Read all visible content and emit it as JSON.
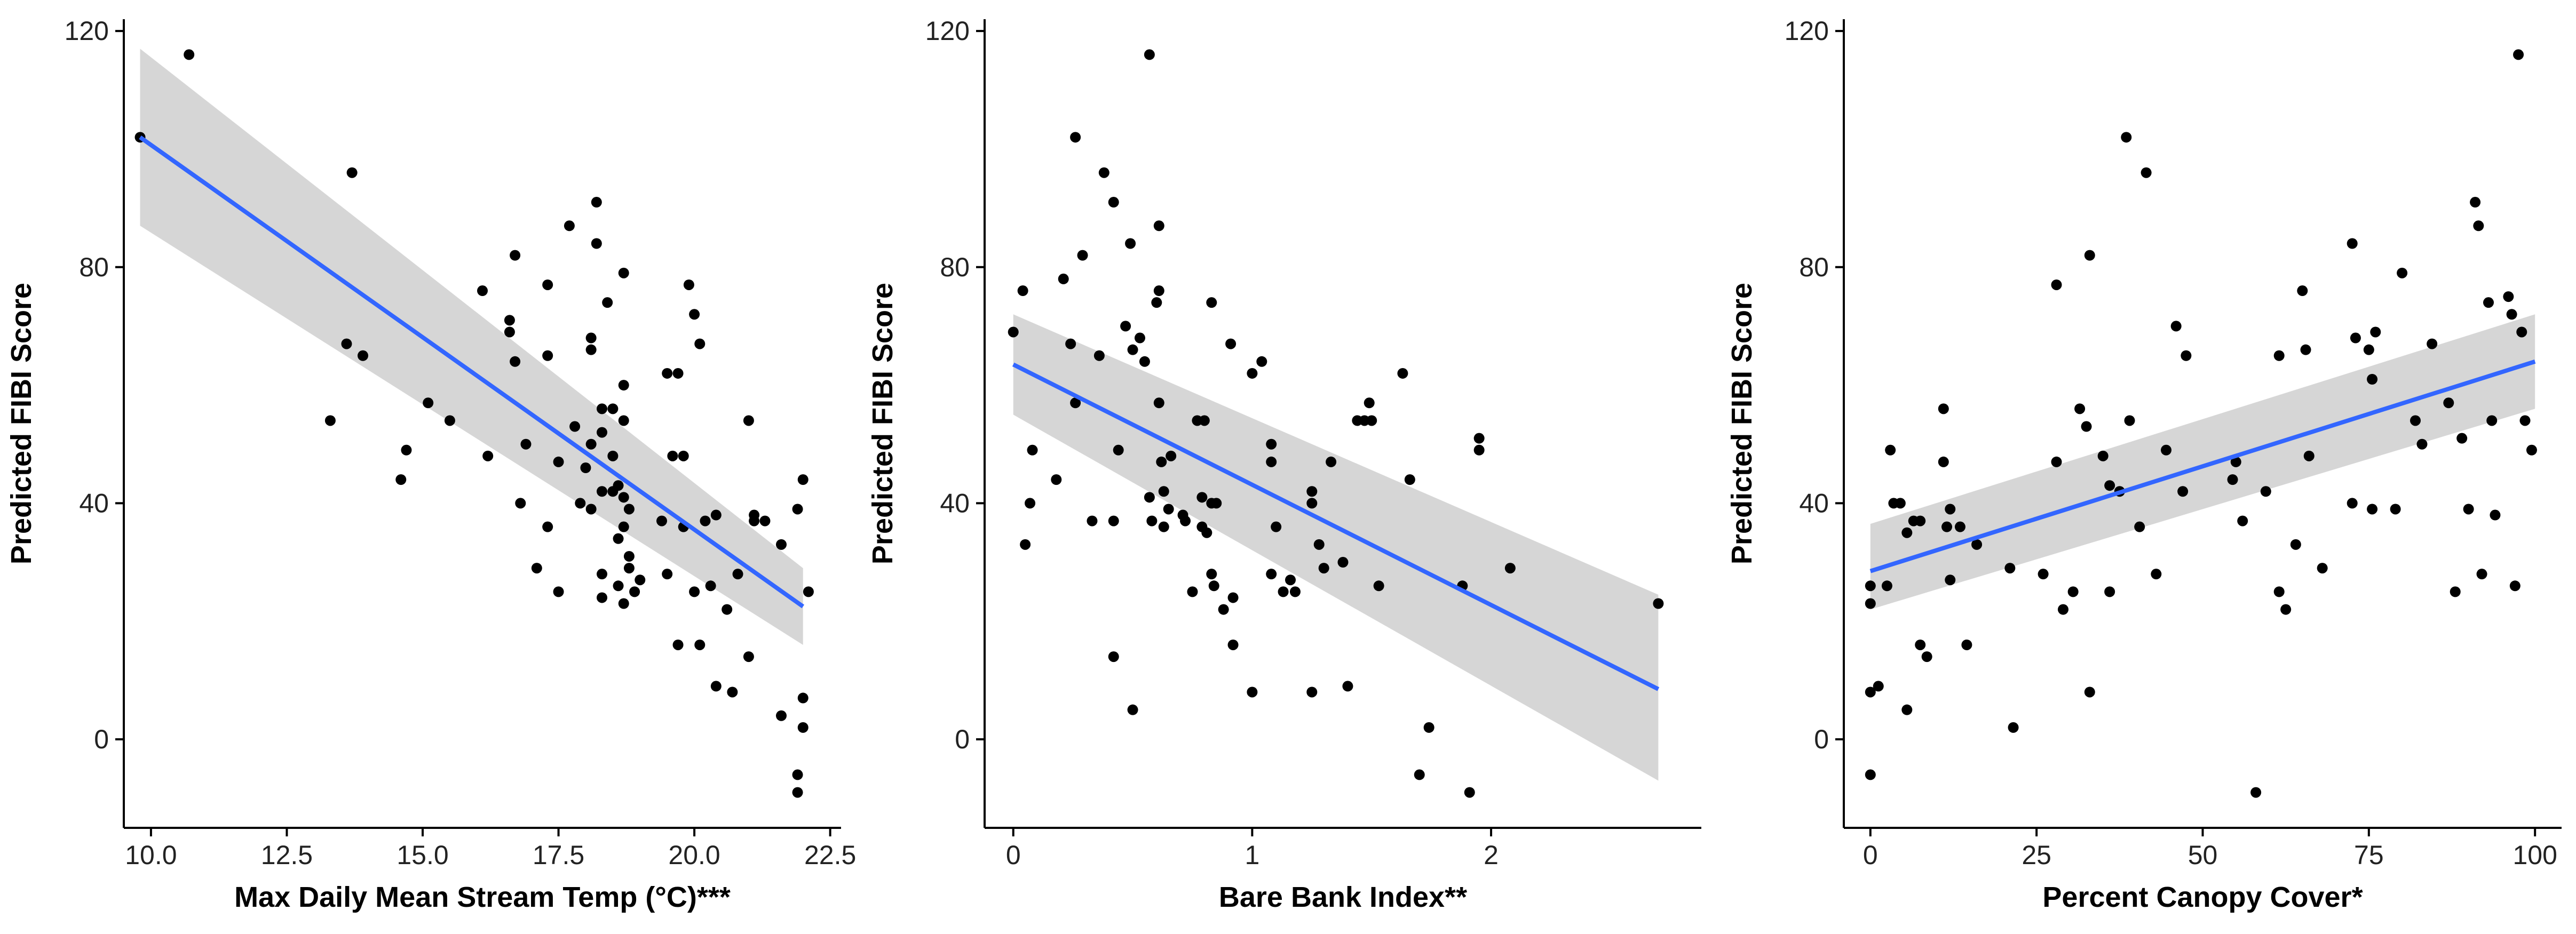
{
  "colors": {
    "point": "#000000",
    "fit_line": "#3366ff",
    "confidence_band": "#d4d4d4",
    "axis": "#000000",
    "background": "#ffffff"
  },
  "chart_data": [
    {
      "type": "scatter",
      "xlabel": "Max Daily Mean Stream Temp (°C)***",
      "ylabel": "Predicted FIBI Score",
      "xlim": [
        9.5,
        22.7
      ],
      "ylim": [
        -15,
        122
      ],
      "xticks": [
        10.0,
        12.5,
        15.0,
        17.5,
        20.0,
        22.5
      ],
      "xtick_labels": [
        "10.0",
        "12.5",
        "15.0",
        "17.5",
        "20.0",
        "22.5"
      ],
      "yticks": [
        0,
        40,
        80,
        120
      ],
      "ytick_labels": [
        "0",
        "40",
        "80",
        "120"
      ],
      "grid": false,
      "legend": "none",
      "fit": {
        "x": [
          9.8,
          22.0
        ],
        "y": [
          102,
          22.5
        ],
        "band_upper": [
          117,
          29
        ],
        "band_lower": [
          87,
          16
        ]
      },
      "points": [
        [
          9.8,
          102
        ],
        [
          10.7,
          116
        ],
        [
          13.7,
          96
        ],
        [
          13.6,
          67
        ],
        [
          13.9,
          65
        ],
        [
          13.3,
          54
        ],
        [
          14.6,
          44
        ],
        [
          14.7,
          49
        ],
        [
          15.1,
          57
        ],
        [
          15.5,
          54
        ],
        [
          16.1,
          76
        ],
        [
          16.2,
          48
        ],
        [
          16.6,
          69
        ],
        [
          16.6,
          71
        ],
        [
          16.7,
          82
        ],
        [
          16.7,
          64
        ],
        [
          16.8,
          40
        ],
        [
          16.9,
          50
        ],
        [
          17.1,
          29
        ],
        [
          17.3,
          77
        ],
        [
          17.3,
          65
        ],
        [
          17.3,
          36
        ],
        [
          17.5,
          25
        ],
        [
          17.5,
          47
        ],
        [
          17.7,
          87
        ],
        [
          17.8,
          53
        ],
        [
          17.9,
          40
        ],
        [
          18.0,
          46
        ],
        [
          18.1,
          66
        ],
        [
          18.1,
          68
        ],
        [
          18.1,
          39
        ],
        [
          18.1,
          50
        ],
        [
          18.2,
          84
        ],
        [
          18.2,
          91
        ],
        [
          18.3,
          56
        ],
        [
          18.3,
          52
        ],
        [
          18.3,
          42
        ],
        [
          18.3,
          28
        ],
        [
          18.3,
          24
        ],
        [
          18.4,
          74
        ],
        [
          18.5,
          56
        ],
        [
          18.5,
          48
        ],
        [
          18.5,
          42
        ],
        [
          18.6,
          26
        ],
        [
          18.6,
          34
        ],
        [
          18.6,
          43
        ],
        [
          18.7,
          79
        ],
        [
          18.7,
          60
        ],
        [
          18.7,
          54
        ],
        [
          18.7,
          41
        ],
        [
          18.7,
          36
        ],
        [
          18.7,
          23
        ],
        [
          18.8,
          39
        ],
        [
          18.8,
          31
        ],
        [
          18.8,
          29
        ],
        [
          18.9,
          25
        ],
        [
          19.0,
          27
        ],
        [
          19.4,
          37
        ],
        [
          19.5,
          62
        ],
        [
          19.5,
          28
        ],
        [
          19.6,
          48
        ],
        [
          19.7,
          62
        ],
        [
          19.7,
          16
        ],
        [
          19.8,
          48
        ],
        [
          19.8,
          36
        ],
        [
          19.9,
          77
        ],
        [
          20.0,
          72
        ],
        [
          20.0,
          25
        ],
        [
          20.1,
          67
        ],
        [
          20.1,
          16
        ],
        [
          20.2,
          37
        ],
        [
          20.3,
          26
        ],
        [
          20.4,
          38
        ],
        [
          20.4,
          9
        ],
        [
          20.6,
          22
        ],
        [
          20.7,
          8
        ],
        [
          20.8,
          28
        ],
        [
          21.0,
          54
        ],
        [
          21.0,
          14
        ],
        [
          21.1,
          37
        ],
        [
          21.1,
          38
        ],
        [
          21.3,
          37
        ],
        [
          21.6,
          33
        ],
        [
          21.6,
          4
        ],
        [
          21.9,
          39
        ],
        [
          21.9,
          -6
        ],
        [
          21.9,
          -9
        ],
        [
          22.0,
          7
        ],
        [
          22.0,
          44
        ],
        [
          22.0,
          2
        ],
        [
          22.1,
          25
        ]
      ]
    },
    {
      "type": "scatter",
      "xlabel": "Bare Bank Index**",
      "ylabel": "Predicted FIBI Score",
      "xlim": [
        -0.12,
        2.88
      ],
      "ylim": [
        -15,
        122
      ],
      "xticks": [
        0,
        1,
        2
      ],
      "xtick_labels": [
        "0",
        "1",
        "2"
      ],
      "yticks": [
        0,
        40,
        80,
        120
      ],
      "ytick_labels": [
        "0",
        "40",
        "80",
        "120"
      ],
      "grid": false,
      "legend": "none",
      "fit": {
        "x": [
          0.0,
          2.7
        ],
        "y": [
          63.5,
          8.5
        ],
        "band_upper": [
          72,
          24.5
        ],
        "band_lower": [
          55,
          -7
        ]
      },
      "points": [
        [
          0.0,
          69
        ],
        [
          0.04,
          76
        ],
        [
          0.05,
          33
        ],
        [
          0.07,
          40
        ],
        [
          0.08,
          49
        ],
        [
          0.18,
          44
        ],
        [
          0.21,
          78
        ],
        [
          0.24,
          67
        ],
        [
          0.26,
          102
        ],
        [
          0.26,
          57
        ],
        [
          0.29,
          82
        ],
        [
          0.33,
          37
        ],
        [
          0.36,
          65
        ],
        [
          0.38,
          96
        ],
        [
          0.42,
          91
        ],
        [
          0.42,
          37
        ],
        [
          0.42,
          14
        ],
        [
          0.44,
          49
        ],
        [
          0.47,
          70
        ],
        [
          0.49,
          84
        ],
        [
          0.5,
          66
        ],
        [
          0.5,
          5
        ],
        [
          0.53,
          68
        ],
        [
          0.55,
          64
        ],
        [
          0.57,
          116
        ],
        [
          0.57,
          41
        ],
        [
          0.58,
          37
        ],
        [
          0.6,
          74
        ],
        [
          0.61,
          76
        ],
        [
          0.61,
          87
        ],
        [
          0.61,
          57
        ],
        [
          0.62,
          47
        ],
        [
          0.63,
          42
        ],
        [
          0.63,
          36
        ],
        [
          0.65,
          39
        ],
        [
          0.66,
          48
        ],
        [
          0.71,
          38
        ],
        [
          0.72,
          37
        ],
        [
          0.75,
          25
        ],
        [
          0.77,
          54
        ],
        [
          0.79,
          41
        ],
        [
          0.79,
          36
        ],
        [
          0.8,
          54
        ],
        [
          0.81,
          35
        ],
        [
          0.83,
          74
        ],
        [
          0.83,
          40
        ],
        [
          0.83,
          28
        ],
        [
          0.84,
          26
        ],
        [
          0.85,
          40
        ],
        [
          0.88,
          22
        ],
        [
          0.91,
          67
        ],
        [
          0.92,
          16
        ],
        [
          0.92,
          24
        ],
        [
          1.0,
          62
        ],
        [
          1.0,
          8
        ],
        [
          1.04,
          64
        ],
        [
          1.08,
          50
        ],
        [
          1.08,
          47
        ],
        [
          1.08,
          28
        ],
        [
          1.1,
          36
        ],
        [
          1.13,
          25
        ],
        [
          1.16,
          27
        ],
        [
          1.18,
          25
        ],
        [
          1.25,
          42
        ],
        [
          1.25,
          40
        ],
        [
          1.25,
          8
        ],
        [
          1.28,
          33
        ],
        [
          1.3,
          29
        ],
        [
          1.33,
          47
        ],
        [
          1.38,
          30
        ],
        [
          1.4,
          9
        ],
        [
          1.44,
          54
        ],
        [
          1.47,
          54
        ],
        [
          1.49,
          57
        ],
        [
          1.5,
          54
        ],
        [
          1.53,
          26
        ],
        [
          1.63,
          62
        ],
        [
          1.66,
          44
        ],
        [
          1.7,
          -6
        ],
        [
          1.74,
          2
        ],
        [
          1.88,
          26
        ],
        [
          1.91,
          -9
        ],
        [
          1.95,
          51
        ],
        [
          1.95,
          49
        ],
        [
          2.08,
          29
        ],
        [
          2.7,
          23
        ]
      ]
    },
    {
      "type": "scatter",
      "xlabel": "Percent Canopy Cover*",
      "ylabel": "Predicted FIBI Score",
      "xlim": [
        -4,
        104
      ],
      "ylim": [
        -15,
        122
      ],
      "xticks": [
        0,
        25,
        50,
        75,
        100
      ],
      "xtick_labels": [
        "0",
        "25",
        "50",
        "75",
        "100"
      ],
      "yticks": [
        0,
        40,
        80,
        120
      ],
      "ytick_labels": [
        "0",
        "40",
        "80",
        "120"
      ],
      "grid": false,
      "legend": "none",
      "fit": {
        "x": [
          0,
          100
        ],
        "y": [
          28.5,
          64
        ],
        "band_upper": [
          36.5,
          72
        ],
        "band_lower": [
          22,
          56
        ]
      },
      "points": [
        [
          0,
          -6
        ],
        [
          0,
          8
        ],
        [
          0,
          23
        ],
        [
          0,
          26
        ],
        [
          1.2,
          9
        ],
        [
          2.5,
          26
        ],
        [
          3,
          49
        ],
        [
          3.5,
          40
        ],
        [
          4.5,
          40
        ],
        [
          5.5,
          5
        ],
        [
          5.5,
          35
        ],
        [
          6.5,
          37
        ],
        [
          7.5,
          16
        ],
        [
          7.5,
          37
        ],
        [
          8.5,
          14
        ],
        [
          11,
          56
        ],
        [
          11,
          47
        ],
        [
          11.5,
          36
        ],
        [
          12,
          27
        ],
        [
          12,
          39
        ],
        [
          13.5,
          36
        ],
        [
          14.5,
          16
        ],
        [
          16,
          33
        ],
        [
          21,
          29
        ],
        [
          21.5,
          2
        ],
        [
          26,
          28
        ],
        [
          28,
          77
        ],
        [
          28,
          47
        ],
        [
          29,
          22
        ],
        [
          30.5,
          25
        ],
        [
          31.5,
          56
        ],
        [
          32.5,
          53
        ],
        [
          33,
          82
        ],
        [
          33,
          8
        ],
        [
          35,
          48
        ],
        [
          36,
          43
        ],
        [
          36,
          25
        ],
        [
          37.5,
          42
        ],
        [
          38.5,
          102
        ],
        [
          39,
          54
        ],
        [
          40.5,
          36
        ],
        [
          41.5,
          96
        ],
        [
          43,
          28
        ],
        [
          44.5,
          49
        ],
        [
          46,
          70
        ],
        [
          47,
          42
        ],
        [
          47.5,
          65
        ],
        [
          54.5,
          44
        ],
        [
          55,
          47
        ],
        [
          56,
          37
        ],
        [
          58,
          -9
        ],
        [
          59.5,
          42
        ],
        [
          61.5,
          65
        ],
        [
          61.5,
          25
        ],
        [
          62.5,
          22
        ],
        [
          64,
          33
        ],
        [
          65,
          76
        ],
        [
          65.5,
          66
        ],
        [
          66,
          48
        ],
        [
          68,
          29
        ],
        [
          72.5,
          84
        ],
        [
          72.5,
          40
        ],
        [
          73,
          68
        ],
        [
          75,
          66
        ],
        [
          75.5,
          39
        ],
        [
          75.5,
          61
        ],
        [
          76,
          69
        ],
        [
          79,
          39
        ],
        [
          80,
          79
        ],
        [
          82,
          54
        ],
        [
          83,
          50
        ],
        [
          84.5,
          67
        ],
        [
          87,
          57
        ],
        [
          88,
          25
        ],
        [
          89,
          51
        ],
        [
          90,
          39
        ],
        [
          91,
          91
        ],
        [
          91.5,
          87
        ],
        [
          92,
          28
        ],
        [
          93,
          74
        ],
        [
          93.5,
          54
        ],
        [
          94,
          38
        ],
        [
          96,
          75
        ],
        [
          96.5,
          72
        ],
        [
          97,
          26
        ],
        [
          97.5,
          116
        ],
        [
          98,
          69
        ],
        [
          98.5,
          54
        ],
        [
          99.5,
          49
        ]
      ]
    }
  ]
}
